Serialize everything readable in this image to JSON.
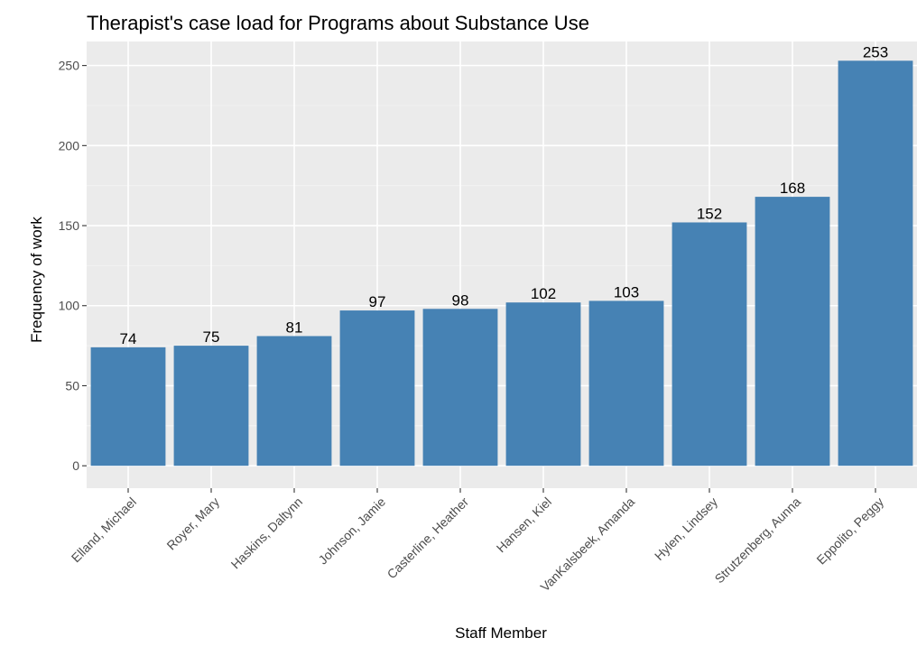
{
  "chart_data": {
    "type": "bar",
    "title": "Therapist's case load for Programs about Substance Use",
    "xlabel": "Staff Member",
    "ylabel": "Frequency of work",
    "categories": [
      "Elland, Michael",
      "Royer, Mary",
      "Haskins, Daltynn",
      "Johnson, Jamie",
      "Casterline, Heather",
      "Hansen, Kiel",
      "VanKalsbeek, Amanda",
      "Hylen, Lindsey",
      "Strutzenberg, Aunna",
      "Eppolito, Peggy"
    ],
    "values": [
      74,
      75,
      81,
      97,
      98,
      102,
      103,
      152,
      168,
      253
    ],
    "data_labels": [
      "74",
      "75",
      "81",
      "97",
      "98",
      "102",
      "103",
      "152",
      "168",
      "253"
    ],
    "y_ticks": [
      0,
      50,
      100,
      150,
      200,
      250
    ],
    "ylim": [
      -14,
      265
    ],
    "grid": true,
    "legend": "none",
    "colors": {
      "bar": "#4682b4",
      "panel_background": "#ebebeb",
      "grid_major": "#ffffff",
      "grid_minor": "#f5f5f5",
      "tick_label": "#4d4d4d"
    }
  }
}
